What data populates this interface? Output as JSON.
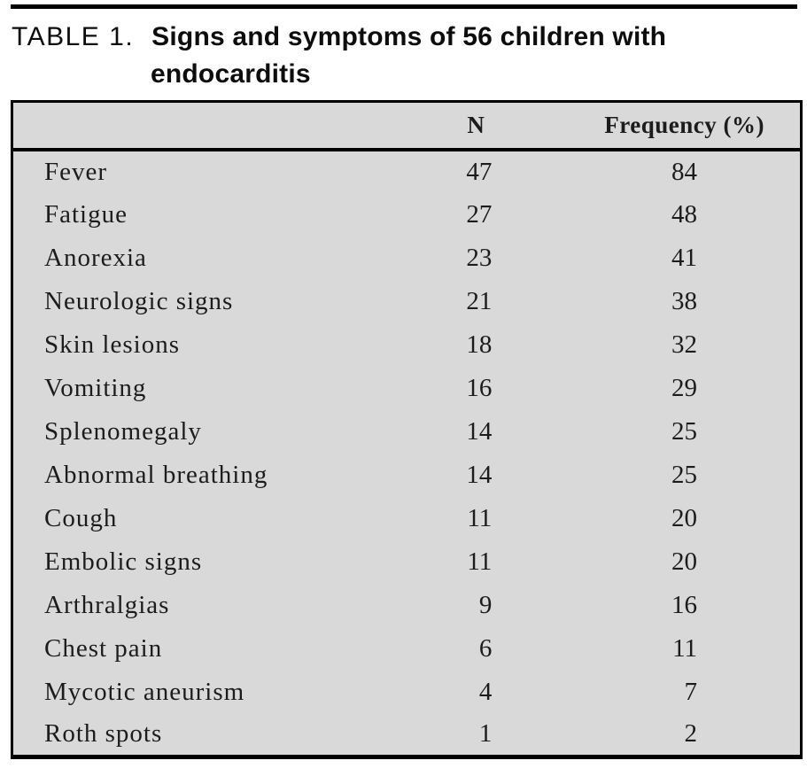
{
  "title": {
    "label": "TABLE 1.",
    "line1": "Signs and symptoms of 56 children with",
    "line2": "endocarditis"
  },
  "table": {
    "header": {
      "symptom": "",
      "n": "N",
      "frequency": "Frequency (%)"
    },
    "rows": [
      {
        "symptom": "Fever",
        "n": "47",
        "frequency": "84"
      },
      {
        "symptom": "Fatigue",
        "n": "27",
        "frequency": "48"
      },
      {
        "symptom": "Anorexia",
        "n": "23",
        "frequency": "41"
      },
      {
        "symptom": "Neurologic signs",
        "n": "21",
        "frequency": "38"
      },
      {
        "symptom": "Skin lesions",
        "n": "18",
        "frequency": "32"
      },
      {
        "symptom": "Vomiting",
        "n": "16",
        "frequency": "29"
      },
      {
        "symptom": "Splenomegaly",
        "n": "14",
        "frequency": "25"
      },
      {
        "symptom": "Abnormal breathing",
        "n": "14",
        "frequency": "25"
      },
      {
        "symptom": "Cough",
        "n": "11",
        "frequency": "20"
      },
      {
        "symptom": "Embolic signs",
        "n": "11",
        "frequency": "20"
      },
      {
        "symptom": "Arthralgias",
        "n": "9",
        "frequency": "16"
      },
      {
        "symptom": "Chest pain",
        "n": "6",
        "frequency": "11"
      },
      {
        "symptom": "Mycotic aneurism",
        "n": "4",
        "frequency": "7"
      },
      {
        "symptom": "Roth spots",
        "n": "1",
        "frequency": "2"
      }
    ],
    "colors": {
      "cell_background": "#d9d9d9",
      "border": "#000000",
      "text": "#1c1c1c"
    }
  }
}
